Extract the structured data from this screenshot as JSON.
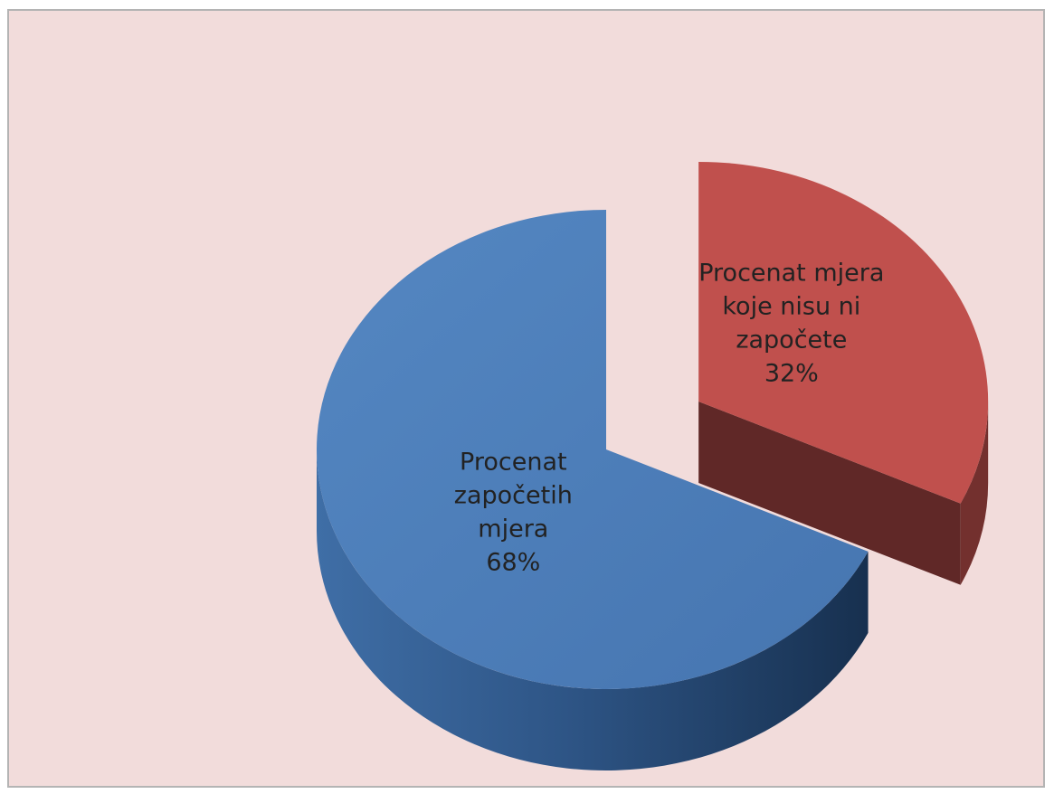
{
  "chart_data": {
    "type": "pie",
    "style": "3d-exploded",
    "background_color": "#f2dcdb",
    "slices": [
      {
        "label_lines": [
          "Procenat mjera",
          "koje nisu ni",
          "započete"
        ],
        "value": 32,
        "percent_label": "32%",
        "color": "#c0504d",
        "exploded": true
      },
      {
        "label_lines": [
          "Procenat",
          "započetih",
          "mjera"
        ],
        "value": 68,
        "percent_label": "68%",
        "color": "#4f81bd",
        "exploded": false
      }
    ]
  }
}
